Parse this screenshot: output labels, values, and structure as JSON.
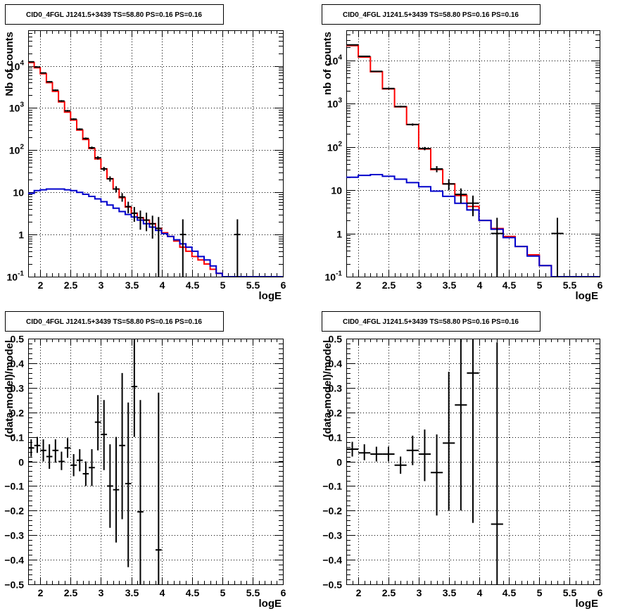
{
  "colors": {
    "data": "#000000",
    "total_model": "#ff0000",
    "source_model": "#0000cc",
    "grid": "#000000"
  },
  "chart_data": [
    {
      "id": "p1",
      "type": "step-histogram",
      "title": "CID0_4FGL J1241.5+3439 TS=58.80 PS=0.16 PS=0.16",
      "xlabel": "logE",
      "ylabel": "Nb of counts",
      "yscale": "log",
      "xlim": [
        1.8,
        6.0
      ],
      "ylim": [
        0.1,
        70000
      ],
      "grid": true,
      "x_ticks": [
        2,
        2.5,
        3,
        3.5,
        4,
        4.5,
        5,
        5.5,
        6
      ],
      "x_tick_labels": [
        "2",
        "2.5",
        "3",
        "3.5",
        "4",
        "4.5",
        "5",
        "5.5",
        "6"
      ],
      "y_ticks": [
        0.1,
        1,
        10,
        100,
        1000,
        10000
      ],
      "y_tick_labels": [
        [
          "10",
          "-1"
        ],
        [
          "1",
          ""
        ],
        [
          "10",
          ""
        ],
        [
          "10",
          "2"
        ],
        [
          "10",
          "3"
        ],
        [
          "10",
          "4"
        ]
      ],
      "bin_width": 0.1,
      "bin_lo": [
        1.8,
        1.9,
        2.0,
        2.1,
        2.2,
        2.3,
        2.4,
        2.5,
        2.6,
        2.7,
        2.8,
        2.9,
        3.0,
        3.1,
        3.2,
        3.3,
        3.4,
        3.5,
        3.6,
        3.7,
        3.8,
        3.9,
        4.0,
        4.1,
        4.2,
        4.3,
        4.4,
        4.5,
        4.6,
        4.7,
        4.8,
        4.9,
        5.0,
        5.1,
        5.2,
        5.3,
        5.4,
        5.5,
        5.6,
        5.7,
        5.8,
        5.9
      ],
      "series": [
        {
          "name": "total",
          "kind": "step",
          "values": [
            12000,
            9000,
            6500,
            4000,
            2500,
            1400,
            800,
            520,
            300,
            180,
            110,
            62,
            36,
            21,
            12,
            7.5,
            4.5,
            3.2,
            2.5,
            2.2,
            1.8,
            1.4,
            1.1,
            0.9,
            0.7,
            0.5,
            0.4,
            0.3,
            0.25,
            0.2,
            0.15,
            0.12,
            0.1,
            0.1,
            0.1,
            0.1,
            0.1,
            0.1,
            0.1,
            0.1,
            0.1,
            0.1
          ]
        },
        {
          "name": "source",
          "kind": "step",
          "values": [
            9.5,
            11,
            11.5,
            12,
            12,
            12,
            11.5,
            11,
            10,
            9,
            8,
            7,
            6,
            5,
            4.2,
            3.5,
            3,
            2.6,
            2.2,
            1.8,
            1.5,
            1.25,
            1.05,
            0.9,
            0.75,
            0.6,
            0.5,
            0.4,
            0.3,
            0.25,
            0.18,
            0.12,
            0.1,
            0.1,
            0.1,
            0.1,
            0.1,
            0.1,
            0.1,
            0.1,
            0.1,
            0.1
          ]
        },
        {
          "name": "data",
          "kind": "points",
          "x": [
            1.85,
            1.95,
            2.05,
            2.15,
            2.25,
            2.35,
            2.45,
            2.55,
            2.65,
            2.75,
            2.85,
            2.95,
            3.05,
            3.15,
            3.25,
            3.35,
            3.45,
            3.55,
            3.65,
            3.75,
            3.85,
            3.95,
            4.35,
            5.25
          ],
          "y": [
            12500,
            9400,
            6800,
            4200,
            2650,
            1470,
            860,
            545,
            315,
            190,
            114,
            66,
            36,
            21,
            12,
            7.8,
            4.6,
            3.2,
            2.5,
            2.2,
            1.8,
            1.4,
            1,
            1
          ],
          "ylo": [
            12200,
            9200,
            6600,
            4050,
            2530,
            1400,
            820,
            520,
            300,
            180,
            106,
            60,
            32,
            18,
            10,
            6,
            3.2,
            2,
            1.3,
            1.2,
            0.8,
            0.1,
            0.1,
            0.1
          ],
          "yhi": [
            12800,
            9600,
            7000,
            4350,
            2770,
            1540,
            900,
            570,
            330,
            200,
            122,
            72,
            40,
            24,
            14,
            9.6,
            6,
            4.5,
            3.7,
            3.3,
            2.8,
            2.6,
            2.3,
            2.3
          ]
        }
      ]
    },
    {
      "id": "p2",
      "type": "step-histogram",
      "title": "CID0_4FGL J1241.5+3439 TS=58.80 PS=0.16 PS=0.16",
      "xlabel": "logE",
      "ylabel": "nb of counts",
      "yscale": "log",
      "xlim": [
        1.8,
        6.0
      ],
      "ylim": [
        0.1,
        50000
      ],
      "grid": true,
      "x_ticks": [
        2,
        2.5,
        3,
        3.5,
        4,
        4.5,
        5,
        5.5,
        6
      ],
      "x_tick_labels": [
        "2",
        "2.5",
        "3",
        "3.5",
        "4",
        "4.5",
        "5",
        "5.5",
        "6"
      ],
      "y_ticks": [
        0.1,
        1,
        10,
        100,
        1000,
        10000
      ],
      "y_tick_labels": [
        [
          "10",
          "-1"
        ],
        [
          "1",
          ""
        ],
        [
          "10",
          ""
        ],
        [
          "10",
          "2"
        ],
        [
          "10",
          "3"
        ],
        [
          "10",
          "4"
        ]
      ],
      "bin_width": 0.2,
      "bin_lo": [
        1.8,
        2.0,
        2.2,
        2.4,
        2.6,
        2.8,
        3.0,
        3.2,
        3.4,
        3.6,
        3.8,
        4.0,
        4.2,
        4.4,
        4.6,
        4.8,
        5.0,
        5.2,
        5.4,
        5.6,
        5.8
      ],
      "series": [
        {
          "name": "total",
          "kind": "step",
          "values": [
            22000,
            12000,
            5500,
            2200,
            850,
            330,
            90,
            30,
            14,
            7.5,
            4.2,
            2.0,
            1.3,
            0.85,
            0.5,
            0.32,
            0.18,
            0.1,
            0.1,
            0.1,
            0.1
          ]
        },
        {
          "name": "source",
          "kind": "step",
          "values": [
            20,
            22,
            23,
            21,
            18,
            15,
            12,
            9.5,
            7.2,
            5,
            3.5,
            2.0,
            1.25,
            0.8,
            0.5,
            0.3,
            0.18,
            0.1,
            0.1,
            0.1,
            0.1
          ]
        },
        {
          "name": "data",
          "kind": "points",
          "x": [
            1.9,
            2.1,
            2.3,
            2.5,
            2.7,
            2.9,
            3.1,
            3.3,
            3.5,
            3.7,
            3.9,
            4.3,
            5.3
          ],
          "y": [
            23000,
            12500,
            5600,
            2250,
            860,
            330,
            92,
            31,
            14,
            8,
            5,
            1,
            1
          ],
          "ylo": [
            22500,
            12200,
            5450,
            2150,
            820,
            310,
            84,
            26,
            10,
            5,
            2.5,
            0.1,
            0.1
          ],
          "yhi": [
            23500,
            12800,
            5750,
            2350,
            900,
            350,
            100,
            36,
            18,
            11,
            7.5,
            2.3,
            2.3
          ]
        }
      ]
    },
    {
      "id": "p3",
      "type": "scatter-errorbars",
      "title": "CID0_4FGL J1241.5+3439 TS=58.80 PS=0.16 PS=0.16",
      "xlabel": "logE",
      "ylabel": "(data-model)/model",
      "yscale": "linear",
      "xlim": [
        1.8,
        6.0
      ],
      "ylim": [
        -0.5,
        0.5
      ],
      "grid": true,
      "x_ticks": [
        2,
        2.5,
        3,
        3.5,
        4,
        4.5,
        5,
        5.5,
        6
      ],
      "x_tick_labels": [
        "2",
        "2.5",
        "3",
        "3.5",
        "4",
        "4.5",
        "5",
        "5.5",
        "6"
      ],
      "y_ticks": [
        -0.5,
        -0.4,
        -0.3,
        -0.2,
        -0.1,
        0,
        0.1,
        0.2,
        0.3,
        0.4,
        0.5
      ],
      "y_tick_labels": [
        "−0.5",
        "−0.4",
        "−0.3",
        "−0.2",
        "−0.1",
        "0",
        "0.1",
        "0.2",
        "0.3",
        "0.4",
        "0.5"
      ],
      "bin_width": 0.1,
      "series": [
        {
          "name": "residual",
          "kind": "points",
          "x": [
            1.85,
            1.95,
            2.05,
            2.15,
            2.25,
            2.35,
            2.45,
            2.55,
            2.65,
            2.75,
            2.85,
            2.95,
            3.05,
            3.15,
            3.25,
            3.35,
            3.45,
            3.55,
            3.65,
            3.95
          ],
          "y": [
            0.055,
            0.065,
            0.045,
            0.02,
            0.045,
            0,
            0.055,
            -0.015,
            0.005,
            -0.05,
            -0.025,
            0.16,
            0.11,
            -0.1,
            -0.115,
            0.065,
            -0.09,
            0.305,
            -0.205,
            -0.36
          ],
          "ylo": [
            0.02,
            0.035,
            0.0,
            -0.03,
            -0.005,
            -0.035,
            0.015,
            -0.06,
            -0.04,
            -0.1,
            -0.1,
            0.045,
            -0.035,
            -0.27,
            -0.33,
            -0.235,
            -0.43,
            0.1,
            -0.5,
            -0.5
          ],
          "yhi": [
            0.09,
            0.1,
            0.09,
            0.07,
            0.09,
            0.04,
            0.095,
            0.03,
            0.05,
            0.0,
            0.05,
            0.27,
            0.25,
            0.07,
            0.1,
            0.36,
            0.24,
            0.5,
            0.25,
            0.28
          ]
        }
      ]
    },
    {
      "id": "p4",
      "type": "scatter-errorbars",
      "title": "CID0_4FGL J1241.5+3439 TS=58.80 PS=0.16 PS=0.16",
      "xlabel": "logE",
      "ylabel": "(data-model)/model",
      "yscale": "linear",
      "xlim": [
        1.8,
        6.0
      ],
      "ylim": [
        -0.5,
        0.5
      ],
      "grid": true,
      "x_ticks": [
        2,
        2.5,
        3,
        3.5,
        4,
        4.5,
        5,
        5.5,
        6
      ],
      "x_tick_labels": [
        "2",
        "2.5",
        "3",
        "3.5",
        "4",
        "4.5",
        "5",
        "5.5",
        "6"
      ],
      "y_ticks": [
        -0.5,
        -0.4,
        -0.3,
        -0.2,
        -0.1,
        0,
        0.1,
        0.2,
        0.3,
        0.4,
        0.5
      ],
      "y_tick_labels": [
        "−0.5",
        "−0.4",
        "−0.3",
        "−0.2",
        "−0.1",
        "0",
        "0.1",
        "0.2",
        "0.3",
        "0.4",
        "0.5"
      ],
      "bin_width": 0.2,
      "series": [
        {
          "name": "residual",
          "kind": "points",
          "x": [
            1.9,
            2.1,
            2.3,
            2.5,
            2.7,
            2.9,
            3.1,
            3.3,
            3.5,
            3.7,
            3.9,
            4.3
          ],
          "y": [
            0.05,
            0.035,
            0.03,
            0.03,
            -0.015,
            0.045,
            0.03,
            -0.045,
            0.075,
            0.23,
            0.36,
            -0.255
          ],
          "ylo": [
            0.02,
            0.005,
            0.0,
            0.0,
            -0.05,
            -0.015,
            -0.08,
            -0.22,
            -0.2,
            -0.2,
            -0.25,
            -0.5
          ],
          "yhi": [
            0.08,
            0.07,
            0.06,
            0.06,
            0.02,
            0.105,
            0.13,
            0.11,
            0.365,
            0.5,
            0.5,
            0.485
          ]
        }
      ]
    }
  ]
}
